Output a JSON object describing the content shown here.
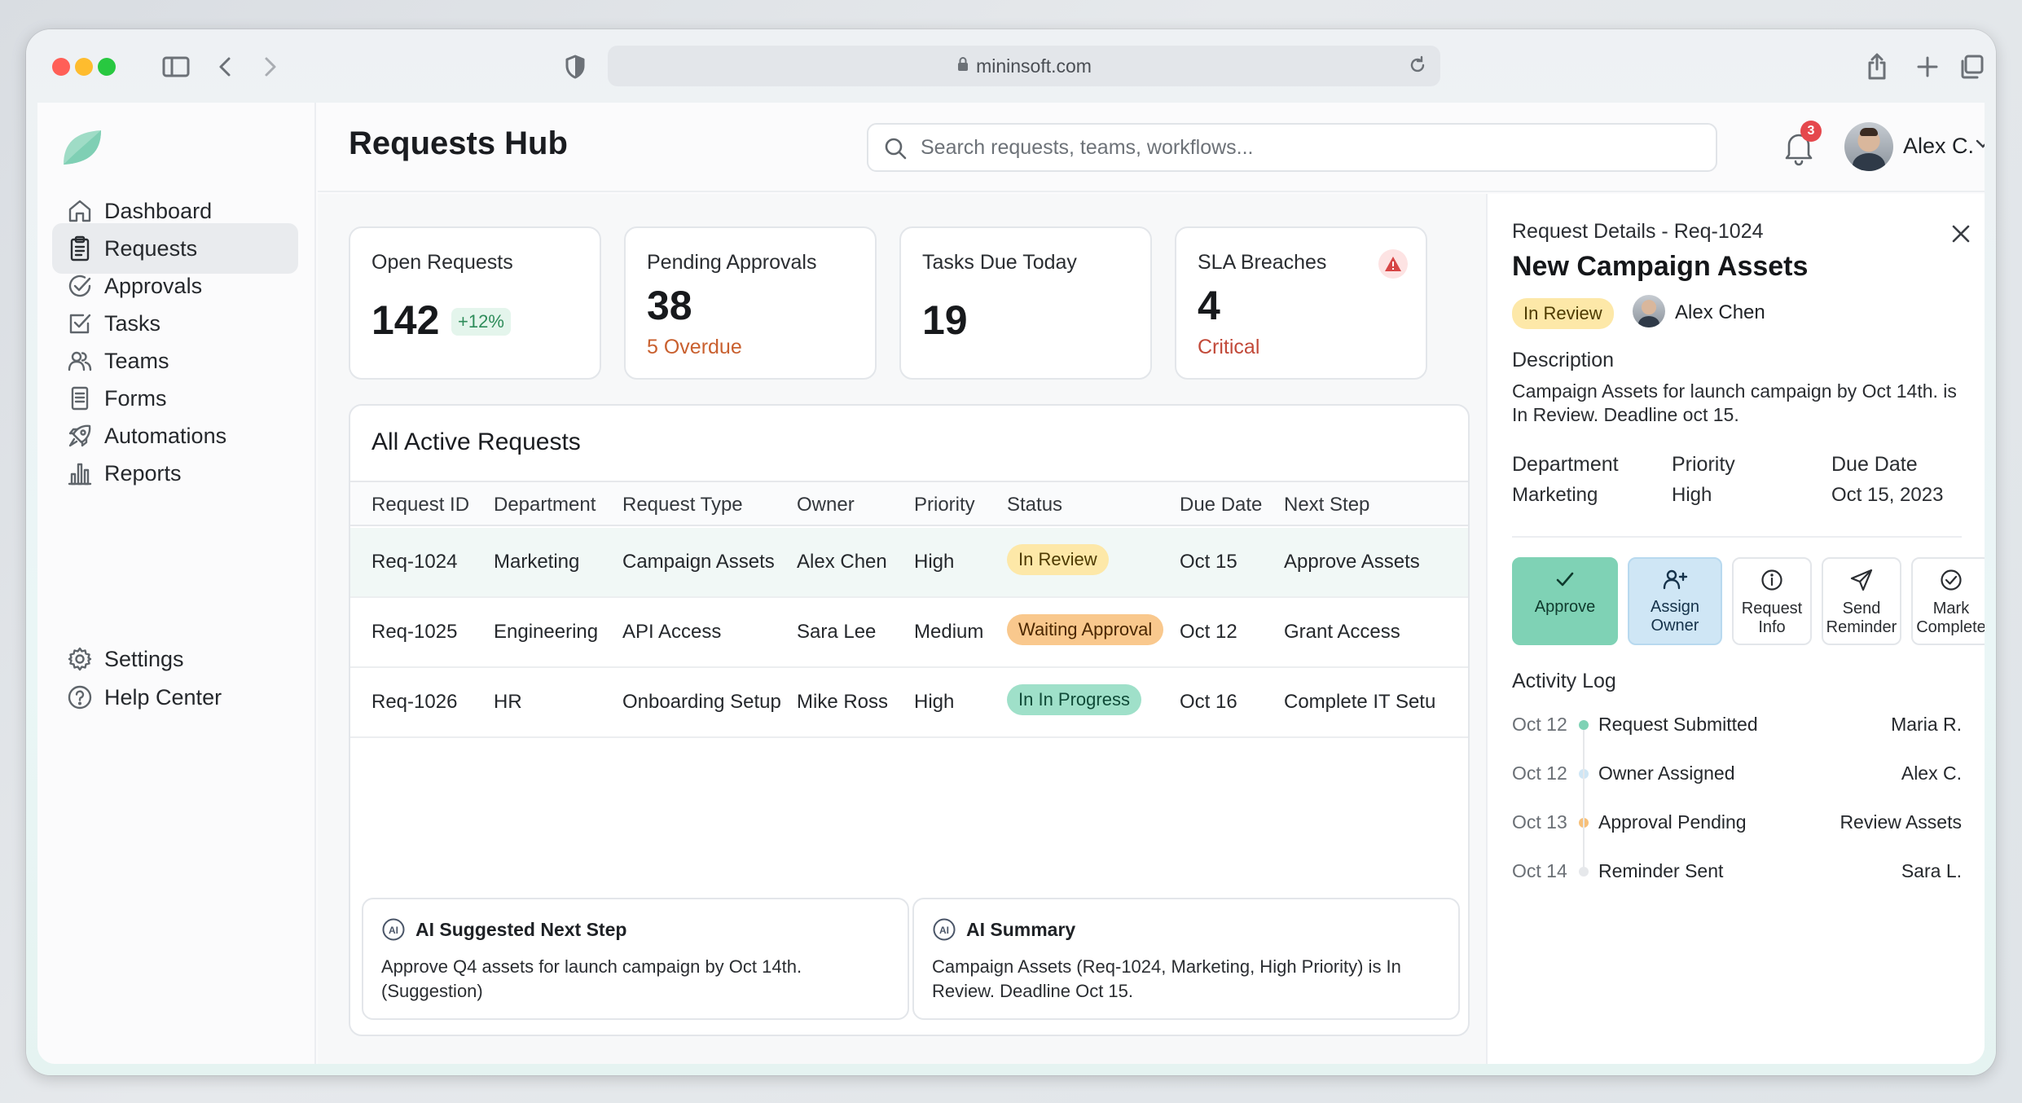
{
  "browser": {
    "url": "mininsoft.com"
  },
  "header": {
    "title": "Requests Hub",
    "search_placeholder": "Search requests, teams, workflows...",
    "notification_count": "3",
    "user_name": "Alex C."
  },
  "sidebar": {
    "items": [
      {
        "label": "Dashboard",
        "icon": "home-icon"
      },
      {
        "label": "Requests",
        "icon": "clipboard-icon",
        "active": true
      },
      {
        "label": "Approvals",
        "icon": "check-circle-icon"
      },
      {
        "label": "Tasks",
        "icon": "checkbox-icon"
      },
      {
        "label": "Teams",
        "icon": "users-icon"
      },
      {
        "label": "Forms",
        "icon": "form-icon"
      },
      {
        "label": "Automations",
        "icon": "rocket-icon"
      },
      {
        "label": "Reports",
        "icon": "bar-chart-icon"
      }
    ],
    "bottom": [
      {
        "label": "Settings",
        "icon": "gear-icon"
      },
      {
        "label": "Help Center",
        "icon": "help-icon"
      }
    ]
  },
  "stats": {
    "open": {
      "label": "Open Requests",
      "value": "142",
      "delta": "+12%"
    },
    "pending": {
      "label": "Pending Approvals",
      "value": "38",
      "sub": "5 Overdue"
    },
    "tasks": {
      "label": "Tasks Due Today",
      "value": "19"
    },
    "sla": {
      "label": "SLA Breaches",
      "value": "4",
      "sub": "Critical"
    }
  },
  "table": {
    "title": "All Active Requests",
    "columns": [
      "Request ID",
      "Department",
      "Request Type",
      "Owner",
      "Priority",
      "Status",
      "Due Date",
      "Next Step"
    ],
    "rows": [
      {
        "id": "Req-1024",
        "department": "Marketing",
        "type": "Campaign Assets",
        "owner": "Alex Chen",
        "priority": "High",
        "status": "In Review",
        "due": "Oct 15",
        "next": "Approve Assets"
      },
      {
        "id": "Req-1025",
        "department": "Engineering",
        "type": "API Access",
        "owner": "Sara Lee",
        "priority": "Medium",
        "status": "Waiting Approval",
        "due": "Oct 12",
        "next": "Grant Access"
      },
      {
        "id": "Req-1026",
        "department": "HR",
        "type": "Onboarding Setup",
        "owner": "Mike Ross",
        "priority": "High",
        "status": "In In Progress",
        "due": "Oct 16",
        "next": "Complete IT Setu"
      }
    ]
  },
  "ai": {
    "next_step": {
      "title": "AI Suggested Next Step",
      "text": "Approve Q4 assets for launch campaign by Oct 14th. (Suggestion)"
    },
    "summary": {
      "title": "AI Summary",
      "text": "Campaign Assets (Req-1024, Marketing, High Priority) is In Review. Deadline Oct 15."
    }
  },
  "details": {
    "subtitle": "Request Details - Req-1024",
    "title": "New Campaign Assets",
    "status": "In Review",
    "owner": "Alex Chen",
    "description_label": "Description",
    "description": "Campaign Assets for launch campaign by Oct 14th. is In Review. Deadline oct 15.",
    "department_label": "Department",
    "department": "Marketing",
    "priority_label": "Priority",
    "priority": "High",
    "due_label": "Due Date",
    "due": "Oct 15, 2023",
    "actions": {
      "approve": "Approve",
      "assign_1": "Assign",
      "assign_2": "Owner",
      "request_1": "Request",
      "request_2": "Info",
      "send_1": "Send",
      "send_2": "Reminder",
      "mark_1": "Mark",
      "mark_2": "Complete"
    },
    "activity_label": "Activity Log",
    "activity": [
      {
        "date": "Oct 12",
        "event": "Request Submitted",
        "actor": "Maria R.",
        "color": "#7fd2b5"
      },
      {
        "date": "Oct 12",
        "event": "Owner Assigned",
        "actor": "Alex C.",
        "color": "#cfe6f5"
      },
      {
        "date": "Oct 13",
        "event": "Approval Pending",
        "actor": "Review Assets",
        "color": "#f6c07a"
      },
      {
        "date": "Oct 14",
        "event": "Reminder Sent",
        "actor": "Sara L.",
        "color": "#e6e8eb"
      }
    ]
  },
  "colors": {
    "accent": "#7fd2b5",
    "in_review": "#fde8a8",
    "waiting": "#f9c88d",
    "in_progress": "#9fe0c9",
    "overdue": "#c9602f",
    "critical": "#c24a3a",
    "notification": "#e5484d"
  }
}
